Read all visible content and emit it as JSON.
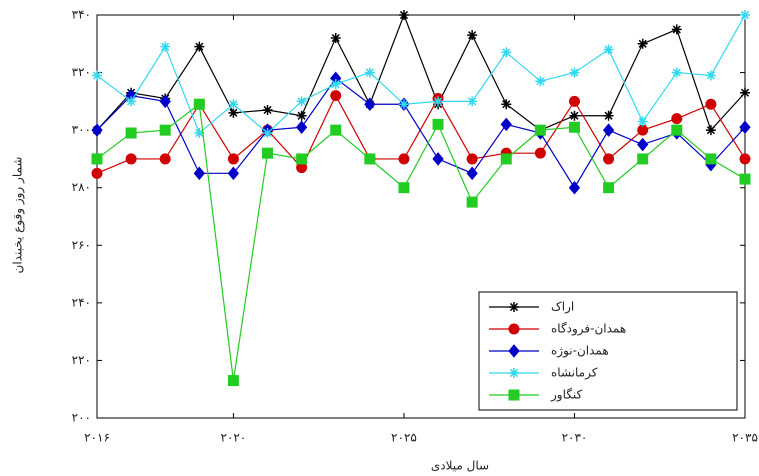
{
  "chart_data": {
    "type": "line",
    "y_label": "شمار روز وقوع یخبندان",
    "x_label": "سال میلادی",
    "x": [
      2016,
      2017,
      2018,
      2019,
      2020,
      2021,
      2022,
      2023,
      2024,
      2025,
      2026,
      2027,
      2028,
      2029,
      2030,
      2031,
      2032,
      2033,
      2034,
      2035
    ],
    "xlim": [
      2016,
      2035
    ],
    "xticks": [
      {
        "value": 2016,
        "label": "۲۰۱۶"
      },
      {
        "value": 2020,
        "label": "۲۰۲۰"
      },
      {
        "value": 2025,
        "label": "۲۰۲۵"
      },
      {
        "value": 2030,
        "label": "۲۰۳۰"
      },
      {
        "value": 2035,
        "label": "۲۰۳۵"
      }
    ],
    "ylim": [
      200,
      340
    ],
    "yticks": [
      {
        "value": 200,
        "label": "۲۰۰"
      },
      {
        "value": 220,
        "label": "۲۲۰"
      },
      {
        "value": 240,
        "label": "۲۴۰"
      },
      {
        "value": 260,
        "label": "۲۶۰"
      },
      {
        "value": 280,
        "label": "۲۸۰"
      },
      {
        "value": 300,
        "label": "۳۰۰"
      },
      {
        "value": 320,
        "label": "۳۲۰"
      },
      {
        "value": 340,
        "label": "۳۴۰"
      }
    ],
    "legend": "lower right",
    "series": [
      {
        "name": "اراک",
        "color": "#000000",
        "marker": "star",
        "values": [
          300,
          313,
          311,
          329,
          306,
          307,
          305,
          332,
          309,
          340,
          309,
          333,
          309,
          300,
          305,
          305,
          330,
          335,
          300,
          313
        ]
      },
      {
        "name": "همدان-فرودگاه",
        "color": "#d00000",
        "marker": "circle",
        "values": [
          285,
          290,
          290,
          309,
          290,
          300,
          287,
          312,
          290,
          290,
          311,
          290,
          292,
          292,
          310,
          290,
          300,
          304,
          309,
          290
        ]
      },
      {
        "name": "همدان-نوژه",
        "color": "#0000c8",
        "marker": "diamond",
        "values": [
          300,
          312,
          310,
          285,
          285,
          300,
          301,
          318,
          309,
          309,
          290,
          285,
          302,
          299,
          280,
          300,
          295,
          299,
          288,
          301
        ]
      },
      {
        "name": "کرمانشاه",
        "color": "#33d8ee",
        "marker": "star",
        "values": [
          319,
          310,
          329,
          299,
          309,
          299,
          310,
          316,
          320,
          309,
          310,
          310,
          327,
          317,
          320,
          328,
          303,
          320,
          319,
          340
        ]
      },
      {
        "name": "کنگاور",
        "color": "#22cc22",
        "marker": "square",
        "values": [
          290,
          299,
          300,
          309,
          213,
          292,
          290,
          300,
          290,
          280,
          302,
          275,
          290,
          300,
          301,
          280,
          290,
          300,
          290,
          283
        ]
      }
    ]
  }
}
